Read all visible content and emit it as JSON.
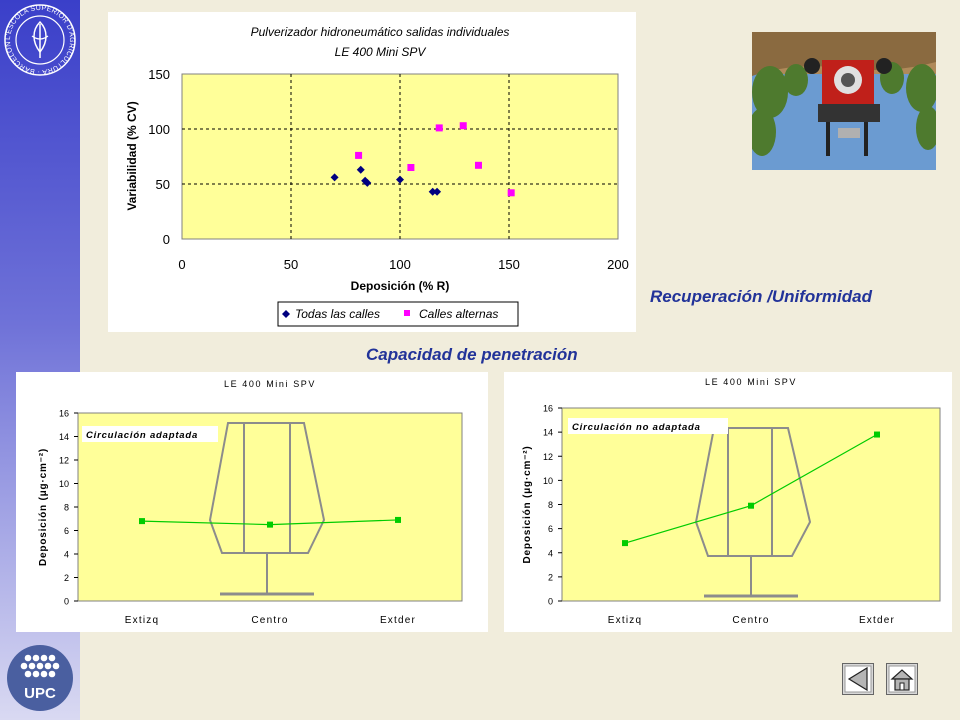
{
  "logos": {
    "top_ring_text": "L'ESCOLA SUPERIOR D'AGRICULTURA · BARCELONA",
    "upc_text": "UPC"
  },
  "captions": {
    "recovery_uniformity": "Recuperación /Uniformidad",
    "penetration": "Capacidad de penetración"
  },
  "icons": {
    "back": "back-triangle-icon",
    "home": "home-icon"
  },
  "colors": {
    "plot_bg": "#ffff99",
    "series_todas": "#000080",
    "series_alternas": "#ff00ff",
    "line_green": "#00cc00",
    "caption": "#223399"
  },
  "chart_data": [
    {
      "type": "scatter",
      "title": "Pulverizador hidroneumático salidas individuales",
      "subtitle": "LE 400 Mini SPV",
      "xlabel": "Deposición (% R)",
      "ylabel": "Variabilidad (% CV)",
      "xlim": [
        0,
        200
      ],
      "ylim": [
        0,
        150
      ],
      "xticks": [
        0,
        50,
        100,
        150,
        200
      ],
      "yticks": [
        0,
        50,
        100,
        150
      ],
      "grid": true,
      "legend": "bottom",
      "series": [
        {
          "name": "Todas las calles",
          "marker": "diamond",
          "points": [
            [
              70,
              56
            ],
            [
              82,
              63
            ],
            [
              84,
              53
            ],
            [
              85,
              51
            ],
            [
              100,
              54
            ],
            [
              115,
              43
            ],
            [
              117,
              43
            ]
          ]
        },
        {
          "name": "Calles alternas",
          "marker": "square",
          "points": [
            [
              81,
              76
            ],
            [
              105,
              65
            ],
            [
              118,
              101
            ],
            [
              129,
              103
            ],
            [
              136,
              67
            ],
            [
              151,
              42
            ]
          ]
        }
      ]
    },
    {
      "type": "line",
      "title": "LE 400 Mini SPV",
      "ylabel": "Deposición (μg·cm⁻²)",
      "annotation": "Circulación adaptada",
      "categories": [
        "Extizq",
        "Centro",
        "Extder"
      ],
      "values": [
        6.8,
        6.5,
        6.9
      ],
      "ylim": [
        0,
        16
      ],
      "yticks": [
        0,
        2,
        4,
        6,
        8,
        10,
        12,
        14,
        16
      ]
    },
    {
      "type": "line",
      "title": "LE 400 Mini SPV",
      "ylabel": "Deposición (μg·cm⁻²)",
      "annotation": "Circulación no adaptada",
      "categories": [
        "Extizq",
        "Centro",
        "Extder"
      ],
      "values": [
        4.8,
        7.9,
        13.8
      ],
      "ylim": [
        0,
        16
      ],
      "yticks": [
        0,
        2,
        4,
        6,
        8,
        10,
        12,
        14,
        16
      ]
    }
  ]
}
